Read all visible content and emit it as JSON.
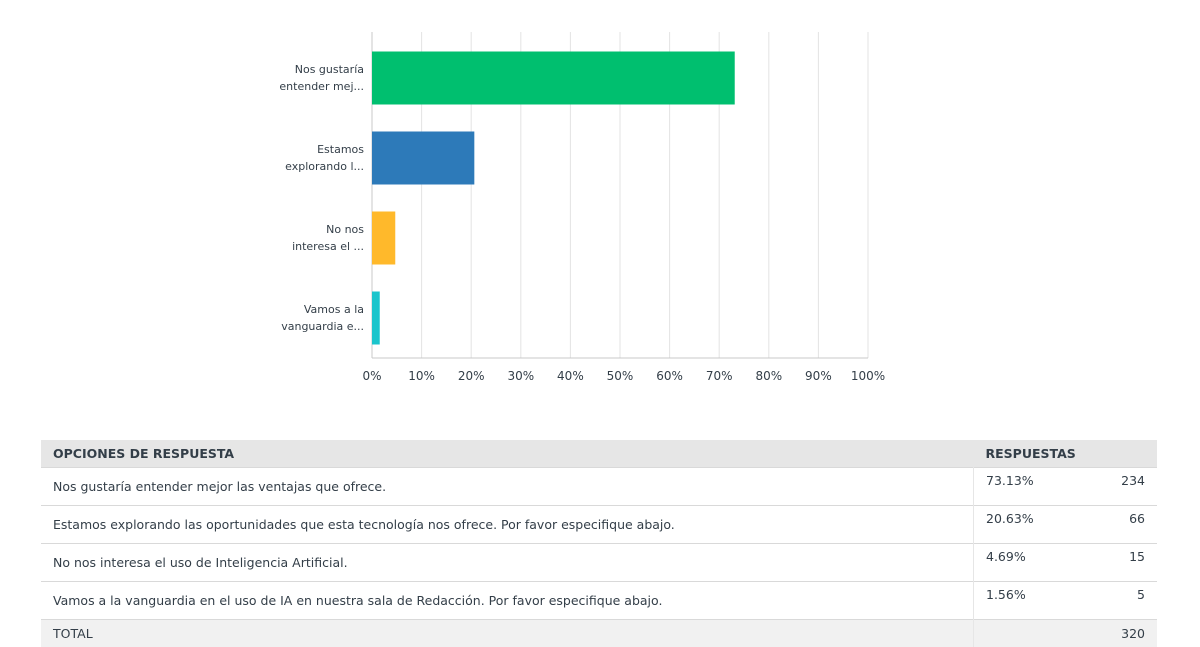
{
  "chart_data": {
    "type": "bar",
    "orientation": "horizontal",
    "categories": [
      [
        "Nos gustaría",
        "entender mej..."
      ],
      [
        "Estamos",
        "explorando l..."
      ],
      [
        "No nos",
        "interesa el ..."
      ],
      [
        "Vamos a la",
        "vanguardia e..."
      ]
    ],
    "values": [
      73.13,
      20.63,
      4.69,
      1.56
    ],
    "xlim": [
      0,
      100
    ],
    "ticks": [
      "0%",
      "10%",
      "20%",
      "30%",
      "40%",
      "50%",
      "60%",
      "70%",
      "80%",
      "90%",
      "100%"
    ],
    "grid": true,
    "colors": [
      "#00bf6f",
      "#2d7ab9",
      "#ffb92b",
      "#1bc5cc"
    ]
  },
  "table": {
    "headers": {
      "option": "OPCIONES DE RESPUESTA",
      "responses": "RESPUESTAS"
    },
    "rows": [
      {
        "option": "Nos gustaría entender mejor las ventajas que ofrece.",
        "percent": "73.13%",
        "count": "234"
      },
      {
        "option": "Estamos explorando las oportunidades que esta tecnología nos ofrece. Por favor especifique abajo.",
        "percent": "20.63%",
        "count": "66"
      },
      {
        "option": "No nos interesa el uso de Inteligencia Artificial.",
        "percent": "4.69%",
        "count": "15"
      },
      {
        "option": "Vamos a la vanguardia en el uso de IA en nuestra sala de Redacción. Por favor especifique abajo.",
        "percent": "1.56%",
        "count": "5"
      }
    ],
    "total": {
      "label": "TOTAL",
      "count": "320"
    }
  }
}
